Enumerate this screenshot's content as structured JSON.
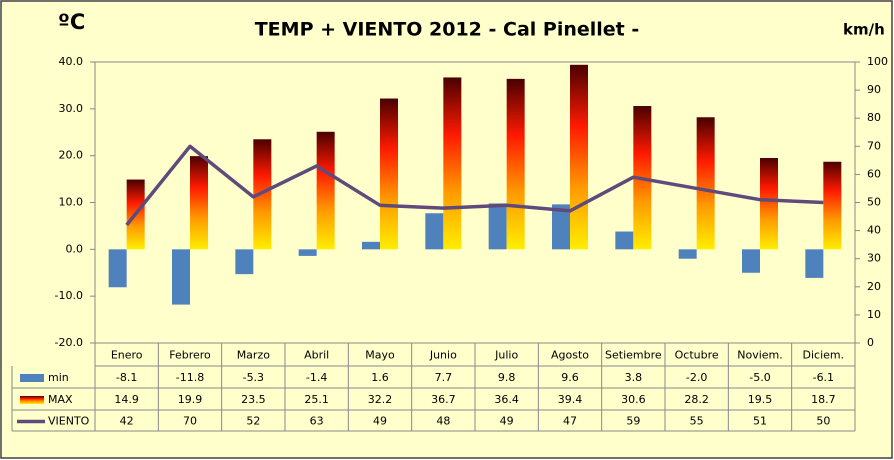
{
  "chart_data": {
    "type": "bar",
    "title": "TEMP + VIENTO 2012 - Cal Pinellet -",
    "y_label": "ºC",
    "y2_label": "km/h",
    "categories": [
      "Enero",
      "Febrero",
      "Marzo",
      "Abril",
      "Mayo",
      "Junio",
      "Julio",
      "Agosto",
      "Setiembre",
      "Octubre",
      "Noviem.",
      "Diciem."
    ],
    "series": [
      {
        "name": "min",
        "type": "bar",
        "color": "#4f81bd",
        "values": [
          -8.1,
          -11.8,
          -5.3,
          -1.4,
          1.6,
          7.7,
          9.8,
          9.6,
          3.8,
          -2.0,
          -5.0,
          -6.1
        ],
        "value_labels": [
          "-8.1",
          "-11.8",
          "-5.3",
          "-1.4",
          "1.6",
          "7.7",
          "9.8",
          "9.6",
          "3.8",
          "-2.0",
          "-5.0",
          "-6.1"
        ]
      },
      {
        "name": "MAX",
        "type": "bar",
        "color": [
          "#4a0000",
          "#ff1a00",
          "#ff9a00",
          "#ffee00"
        ],
        "values": [
          14.9,
          19.9,
          23.5,
          25.1,
          32.2,
          36.7,
          36.4,
          39.4,
          30.6,
          28.2,
          19.5,
          18.7
        ]
      },
      {
        "name": "VIENTO",
        "type": "line",
        "axis": "y2",
        "color": "#604a7b",
        "values": [
          42,
          70,
          52,
          63,
          49,
          48,
          49,
          47,
          59,
          55,
          51,
          50
        ]
      }
    ],
    "ylim": [
      -20,
      40
    ],
    "yticks": [
      {
        "value": -20,
        "label": "-20.0"
      },
      {
        "value": -10,
        "label": "-10.0"
      },
      {
        "value": 0,
        "label": "0.0"
      },
      {
        "value": 10,
        "label": "10.0"
      },
      {
        "value": 20,
        "label": "20.0"
      },
      {
        "value": 30,
        "label": "30.0"
      },
      {
        "value": 40,
        "label": "40.0"
      }
    ],
    "y2lim": [
      0,
      100
    ],
    "y2ticks": [
      0,
      10,
      20,
      30,
      40,
      50,
      60,
      70,
      80,
      90,
      100
    ],
    "grid": false
  }
}
